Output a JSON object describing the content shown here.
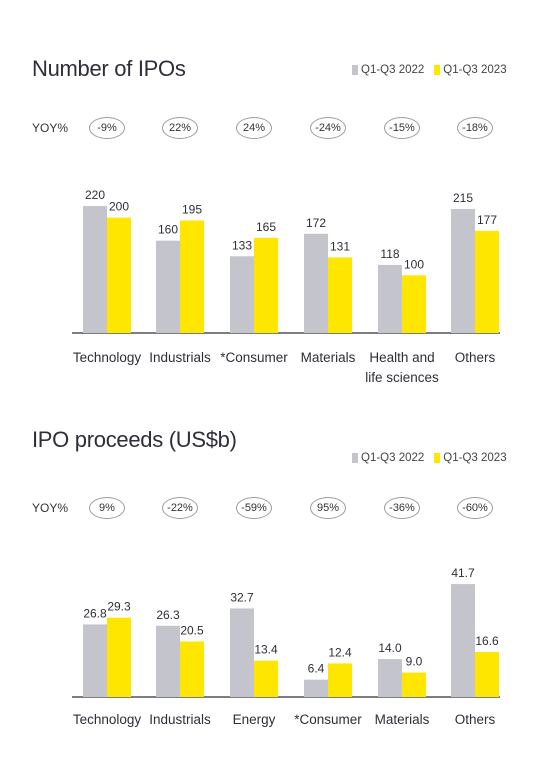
{
  "colors": {
    "series_2022": "#c4c4cd",
    "series_2023": "#ffe600",
    "axis": "#2e2e38"
  },
  "chart_data": [
    {
      "type": "bar",
      "title": "Number of IPOs",
      "row_label": "YOY%",
      "yoy": [
        "-9%",
        "22%",
        "24%",
        "-24%",
        "-15%",
        "-18%"
      ],
      "categories": [
        "Technology",
        "Industrials",
        "*Consumer",
        "Materials",
        "Health and life sciences",
        "Others"
      ],
      "category_lines": [
        [
          "Technology"
        ],
        [
          "Industrials"
        ],
        [
          "*Consumer"
        ],
        [
          "Materials"
        ],
        [
          "Health and",
          "life sciences"
        ],
        [
          "Others"
        ]
      ],
      "series": [
        {
          "name": "Q1-Q3 2022",
          "values": [
            220,
            160,
            133,
            172,
            118,
            215
          ]
        },
        {
          "name": "Q1-Q3 2023",
          "values": [
            200,
            195,
            165,
            131,
            100,
            177
          ]
        }
      ],
      "value_labels": [
        [
          "220",
          "160",
          "133",
          "172",
          "118",
          "215"
        ],
        [
          "200",
          "195",
          "165",
          "131",
          "100",
          "177"
        ]
      ],
      "ylim": [
        0,
        260
      ]
    },
    {
      "type": "bar",
      "title": "IPO proceeds (US$b)",
      "row_label": "YOY%",
      "yoy": [
        "9%",
        "-22%",
        "-59%",
        "95%",
        "-36%",
        "-60%"
      ],
      "categories": [
        "Technology",
        "Industrials",
        "Energy",
        "*Consumer",
        "Materials",
        "Others"
      ],
      "category_lines": [
        [
          "Technology"
        ],
        [
          "Industrials"
        ],
        [
          "Energy"
        ],
        [
          "*Consumer"
        ],
        [
          "Materials"
        ],
        [
          "Others"
        ]
      ],
      "series": [
        {
          "name": "Q1-Q3 2022",
          "values": [
            26.8,
            26.3,
            32.7,
            6.4,
            14.0,
            41.7
          ]
        },
        {
          "name": "Q1-Q3 2023",
          "values": [
            29.3,
            20.5,
            13.4,
            12.4,
            9.0,
            16.6
          ]
        }
      ],
      "value_labels": [
        [
          "26.8",
          "26.3",
          "32.7",
          "6.4",
          "14.0",
          "41.7"
        ],
        [
          "29.3",
          "20.5",
          "13.4",
          "12.4",
          "9.0",
          "16.6"
        ]
      ],
      "ylim": [
        0,
        48
      ]
    }
  ]
}
